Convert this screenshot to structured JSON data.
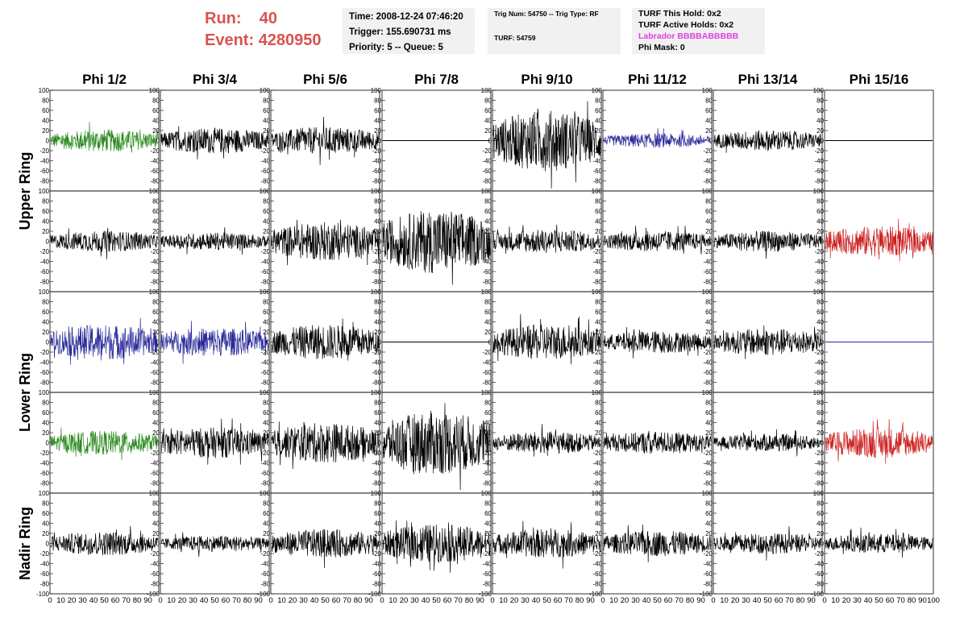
{
  "header": {
    "run_label": "Run:",
    "run_value": "40",
    "event_label": "Event:",
    "event_value": "4280950",
    "time": "Time: 2008-12-24 07:46:20",
    "trigger": "Trigger: 155.690731 ms",
    "priority": "Priority: 5 -- Queue: 5",
    "trig_num": "Trig Num: 54750 -- Trig Type: RF",
    "turf": "TURF: 54759",
    "turf_hold": "TURF This Hold: 0x2",
    "turf_active": "TURF Active Holds: 0x2",
    "labrador": "Labrador BBBBABBBBB",
    "phi_mask": "Phi Mask: 0"
  },
  "colors": {
    "run_text": "#d9534f",
    "labrador_text": "#e040e0",
    "info_box": "#f1f1f1",
    "trace_black": "#000000",
    "trace_green": "#2a8a1e",
    "trace_blue": "#2a2a9a",
    "trace_red": "#cc2020"
  },
  "chart_data": {
    "type": "line",
    "description": "Grid of 5x8 waveform panels",
    "columns": [
      "Phi 1/2",
      "Phi 3/4",
      "Phi 5/6",
      "Phi 7/8",
      "Phi 9/10",
      "Phi 11/12",
      "Phi 13/14",
      "Phi 15/16"
    ],
    "rows": [
      "Upper Ring",
      "Lower Ring",
      "Nadir Ring"
    ],
    "row_groups": [
      {
        "label": "Upper Ring",
        "panel_rows": [
          0,
          1
        ]
      },
      {
        "label": "Lower Ring",
        "panel_rows": [
          2,
          3
        ]
      },
      {
        "label": "Nadir Ring",
        "panel_rows": [
          4
        ]
      }
    ],
    "ylim": [
      -100,
      100
    ],
    "xlim": [
      0,
      100
    ],
    "y_ticks": [
      "100",
      "80",
      "60",
      "40",
      "20",
      "0",
      "-20",
      "-40",
      "-60",
      "-80",
      "-100"
    ],
    "x_ticks": [
      "0",
      "10",
      "20",
      "30",
      "40",
      "50",
      "60",
      "70",
      "80",
      "90",
      "100"
    ],
    "panels": [
      [
        {
          "amp": 14,
          "color": "green"
        },
        {
          "amp": 16,
          "color": "black"
        },
        {
          "amp": 17,
          "color": "black"
        },
        {
          "amp": 0,
          "color": "black"
        },
        {
          "amp": 38,
          "color": "black"
        },
        {
          "amp": 9,
          "color": "blue"
        },
        {
          "amp": 13,
          "color": "black"
        },
        {
          "amp": 0,
          "color": "black"
        }
      ],
      [
        {
          "amp": 13,
          "color": "black"
        },
        {
          "amp": 11,
          "color": "black"
        },
        {
          "amp": 24,
          "color": "black"
        },
        {
          "amp": 40,
          "color": "black"
        },
        {
          "amp": 15,
          "color": "black"
        },
        {
          "amp": 13,
          "color": "black"
        },
        {
          "amp": 13,
          "color": "black"
        },
        {
          "amp": 19,
          "color": "red"
        }
      ],
      [
        {
          "amp": 22,
          "color": "blue"
        },
        {
          "amp": 18,
          "color": "blue"
        },
        {
          "amp": 22,
          "color": "black"
        },
        {
          "amp": 0,
          "color": "black"
        },
        {
          "amp": 22,
          "color": "black"
        },
        {
          "amp": 14,
          "color": "black"
        },
        {
          "amp": 17,
          "color": "black"
        },
        {
          "amp": 0,
          "color": "blue"
        }
      ],
      [
        {
          "amp": 15,
          "color": "green"
        },
        {
          "amp": 19,
          "color": "black"
        },
        {
          "amp": 25,
          "color": "black"
        },
        {
          "amp": 40,
          "color": "black"
        },
        {
          "amp": 14,
          "color": "black"
        },
        {
          "amp": 14,
          "color": "black"
        },
        {
          "amp": 11,
          "color": "black"
        },
        {
          "amp": 19,
          "color": "red"
        }
      ],
      [
        {
          "amp": 15,
          "color": "black"
        },
        {
          "amp": 10,
          "color": "black"
        },
        {
          "amp": 18,
          "color": "black"
        },
        {
          "amp": 24,
          "color": "black"
        },
        {
          "amp": 18,
          "color": "black"
        },
        {
          "amp": 16,
          "color": "black"
        },
        {
          "amp": 13,
          "color": "black"
        },
        {
          "amp": 12,
          "color": "black"
        }
      ]
    ]
  }
}
